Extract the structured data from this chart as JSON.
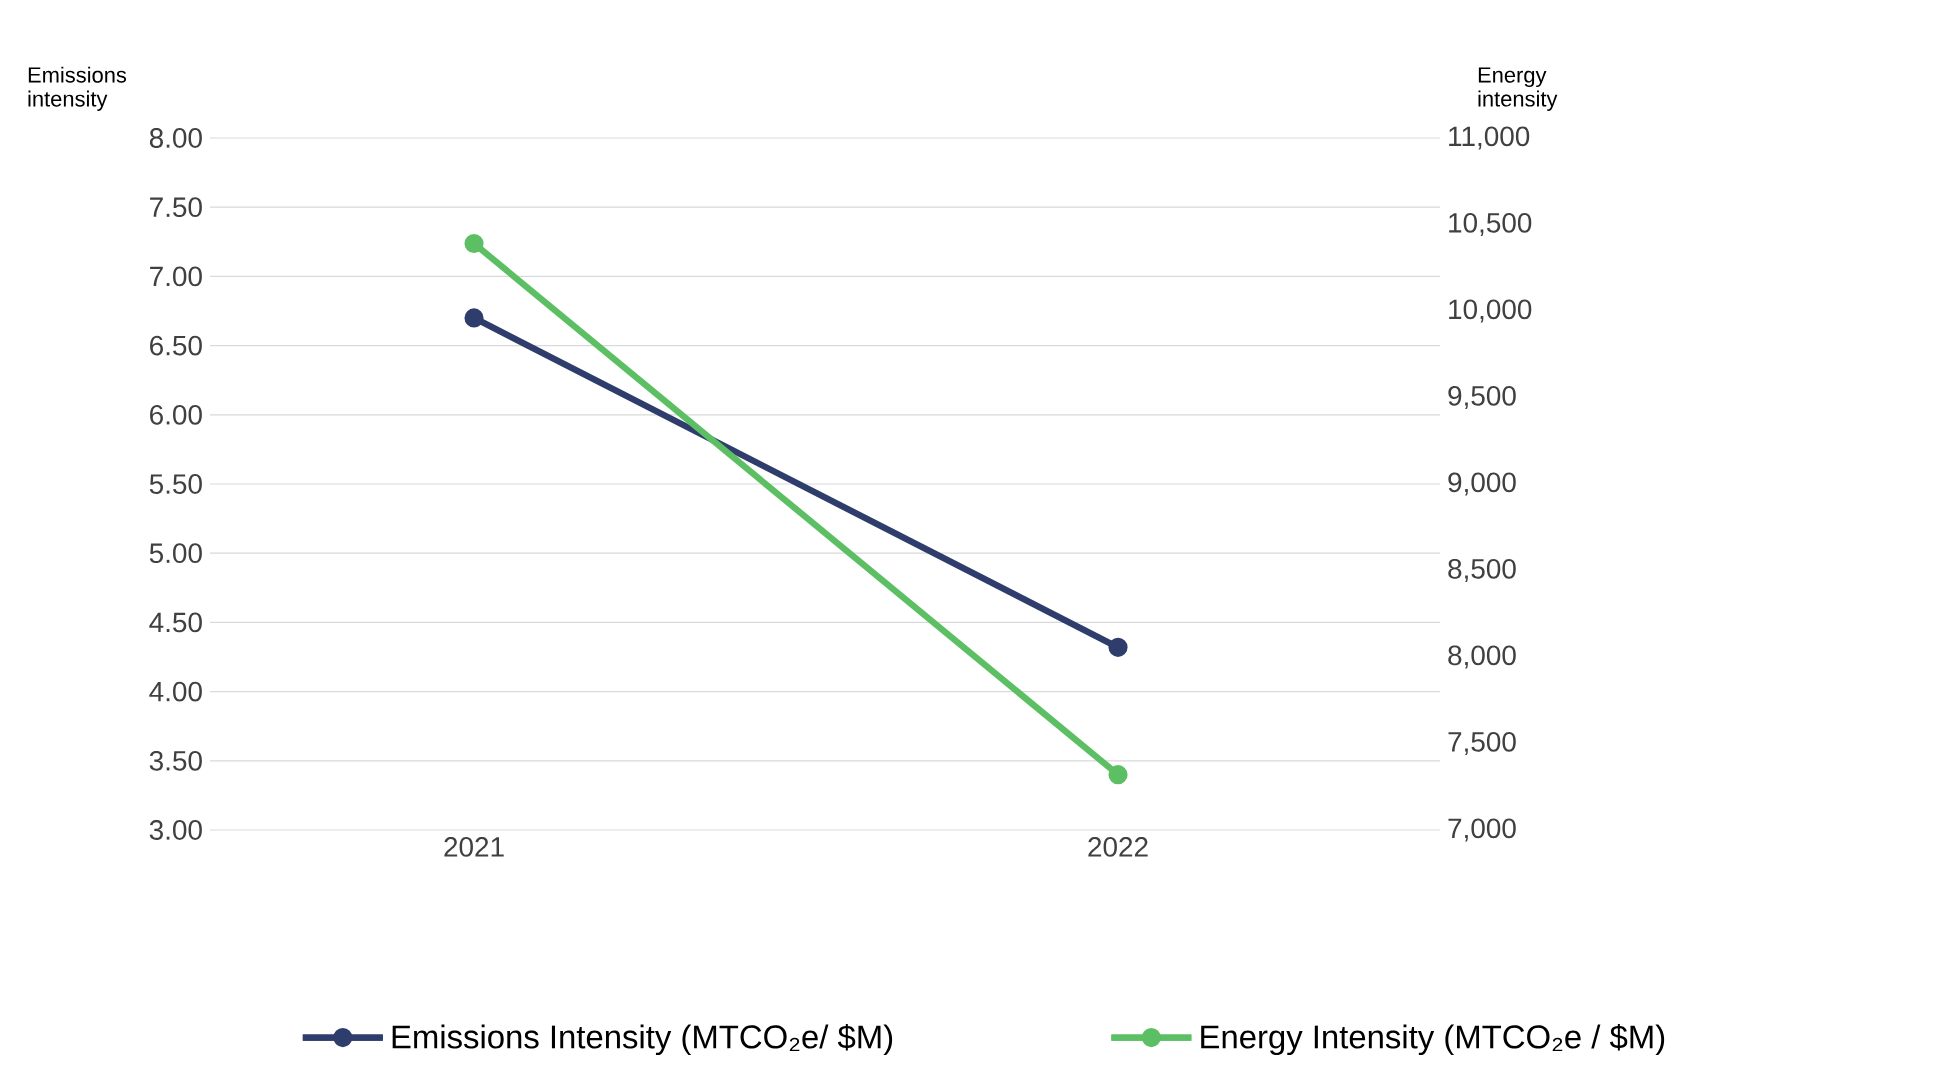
{
  "chart_data": {
    "type": "line",
    "categories": [
      "2021",
      "2022"
    ],
    "series": [
      {
        "name": "Emissions Intensity (MTCO₂e/ $M)",
        "color": "#2e3d6b",
        "values": [
          6.7,
          4.32
        ]
      },
      {
        "name": "Energy Intensity (MTCO₂e / $M)",
        "color": "#5cbf63",
        "values": [
          10390,
          7320
        ],
        "axis": "y2"
      }
    ],
    "ylabel": "Emissions intensity",
    "y2label": "Energy intensity",
    "ylim": [
      3,
      8
    ],
    "yticks": [
      {
        "value": 3,
        "label": "3.00"
      },
      {
        "value": 3.5,
        "label": "3.50"
      },
      {
        "value": 4,
        "label": "4.00"
      },
      {
        "value": 4.5,
        "label": "4.50"
      },
      {
        "value": 5,
        "label": "5.00"
      },
      {
        "value": 5.5,
        "label": "5.50"
      },
      {
        "value": 6,
        "label": "6.00"
      },
      {
        "value": 6.5,
        "label": "6.50"
      },
      {
        "value": 7,
        "label": "7.00"
      },
      {
        "value": 7.5,
        "label": "7.50"
      },
      {
        "value": 8,
        "label": "8.00"
      }
    ],
    "y2lim": [
      7000,
      11000
    ],
    "y2ticks": [
      {
        "value": 7000,
        "label": "7,000"
      },
      {
        "value": 7500,
        "label": "7,500"
      },
      {
        "value": 8000,
        "label": "8,000"
      },
      {
        "value": 8500,
        "label": "8,500"
      },
      {
        "value": 9000,
        "label": "9,000"
      },
      {
        "value": 9500,
        "label": "9,500"
      },
      {
        "value": 10000,
        "label": "10,000"
      },
      {
        "value": 10500,
        "label": "10,500"
      },
      {
        "value": 11000,
        "label": "11,000"
      }
    ],
    "grid": "y",
    "legend": "bottom",
    "marker": "circle"
  }
}
